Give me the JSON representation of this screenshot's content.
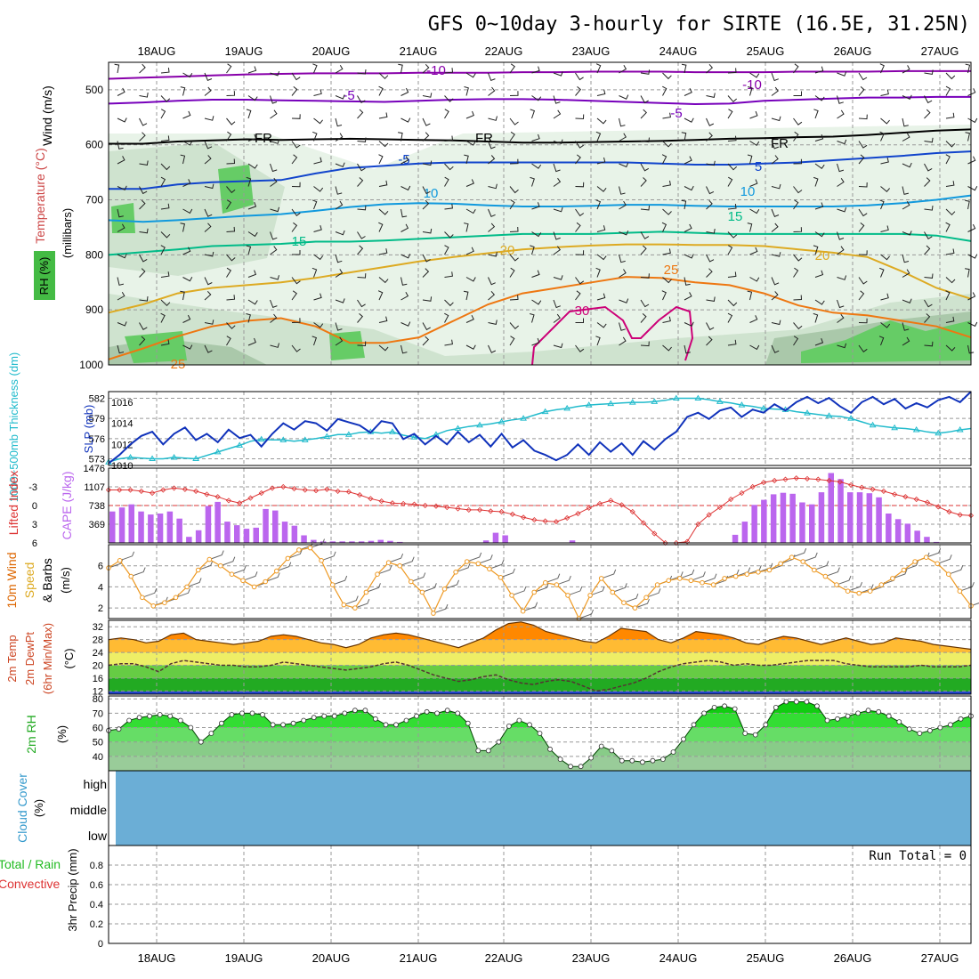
{
  "title": "GFS 0~10day 3-hourly for SIRTE (16.5E, 31.25N)",
  "dates": [
    "18AUG",
    "19AUG",
    "20AUG",
    "21AUG",
    "22AUG",
    "23AUG",
    "24AUG",
    "25AUG",
    "26AUG",
    "27AUG"
  ],
  "colors": {
    "rh_fill": [
      "#e8f3e8",
      "#cfe3cf",
      "#aac8aa",
      "#66cc66"
    ],
    "temp_m10": "#8800aa",
    "temp_m5": "#7700bb",
    "temp_fr": "#000000",
    "temp_5": "#1144cc",
    "temp_10": "#1199dd",
    "temp_15": "#00bb88",
    "temp_20": "#ddaa22",
    "temp_25": "#ee7711",
    "temp_30": "#cc0077",
    "slp": "#1133bb",
    "thickness": "#22bbcc",
    "lifted": "#dd3333",
    "cape": "#bb66ee",
    "wind10": "#ee9922",
    "t2m": "#ee6600",
    "cloud": "#6baed6"
  },
  "panel_labels": {
    "upper_wind": "Wind (m/s)",
    "upper_temp": "Temperature (°C)",
    "upper_rh": "RH (%)",
    "upper_axis": "(millibars)",
    "slp": "SLP (mb)",
    "thickness": "1000~500mb Thickness (dm)",
    "lifted": "Lifted Index",
    "cape": "CAPE (J/kg)",
    "wind10": "10m Wind",
    "wind10_b": "Speed",
    "wind10_c": "& Barbs",
    "wind10_unit": "(m/s)",
    "t2m_a": "2m Temp",
    "t2m_b": "2m DewPt",
    "t2m_c": "(6hr Min/Max)",
    "t2m_unit": "(°C)",
    "rh2m": "2m RH",
    "rh2m_unit": "(%)",
    "cloud": "Cloud Cover",
    "cloud_unit": "(%)",
    "precip_a": "Total / Rain",
    "precip_b": "Convective",
    "precip_c": "3hr Precip (mm)"
  },
  "cloud_levels": [
    "high",
    "middle",
    "low"
  ],
  "run_total": "Run Total = 0",
  "contour_labels": [
    "-10",
    "-10",
    "-5",
    "-5",
    "FR",
    "FR",
    "FR",
    "-5",
    "5",
    "10",
    "10",
    "15",
    "15",
    "20",
    "20",
    "25",
    "25",
    "30"
  ],
  "chart_data": [
    {
      "type": "heatmap",
      "name": "upper",
      "ylabel": "millibars",
      "y_ticks": [
        500,
        600,
        700,
        800,
        900,
        1000
      ],
      "ylim": [
        450,
        1000
      ],
      "contours": {
        "m10": [
          480,
          478,
          476,
          474,
          472,
          471,
          470,
          470,
          470,
          469,
          469,
          469,
          468,
          468,
          467,
          467,
          467,
          468,
          468,
          468,
          467,
          467,
          467,
          466,
          466,
          466
        ],
        "m5": [
          525,
          523,
          520,
          518,
          518,
          519,
          520,
          521,
          522,
          520,
          518,
          517,
          517,
          518,
          520,
          522,
          524,
          526,
          525,
          520,
          518,
          516,
          514,
          514,
          513,
          513
        ],
        "fr": [
          598,
          598,
          594,
          592,
          590,
          591,
          590,
          589,
          590,
          591,
          592,
          594,
          596,
          596,
          595,
          594,
          593,
          591,
          589,
          588,
          586,
          585,
          582,
          578,
          574,
          572
        ],
        "p5": [
          680,
          680,
          672,
          668,
          666,
          664,
          652,
          642,
          638,
          634,
          632,
          632,
          632,
          632,
          632,
          632,
          634,
          636,
          636,
          634,
          632,
          628,
          624,
          620,
          615,
          612
        ],
        "p10": [
          737,
          740,
          737,
          733,
          729,
          726,
          720,
          713,
          708,
          706,
          707,
          710,
          712,
          712,
          711,
          709,
          709,
          711,
          712,
          712,
          712,
          712,
          710,
          706,
          700,
          692
        ],
        "p15": [
          800,
          795,
          790,
          784,
          782,
          780,
          776,
          776,
          774,
          771,
          768,
          765,
          762,
          762,
          762,
          760,
          758,
          760,
          762,
          762,
          762,
          762,
          762,
          762,
          765,
          775
        ],
        "p20": [
          905,
          890,
          870,
          860,
          855,
          850,
          842,
          832,
          822,
          812,
          804,
          797,
          790,
          786,
          783,
          781,
          781,
          782,
          782,
          784,
          790,
          796,
          804,
          830,
          860,
          880
        ],
        "p25": [
          990,
          970,
          948,
          930,
          920,
          915,
          930,
          960,
          960,
          950,
          920,
          890,
          870,
          860,
          850,
          840,
          842,
          850,
          855,
          870,
          892,
          905,
          910,
          920,
          930,
          950
        ]
      },
      "pressure_ticks_label": "millibars"
    },
    {
      "type": "line",
      "name": "slp_thickness",
      "y_ticks_thickness": [
        573,
        576,
        579,
        582
      ],
      "y_ticks_slp": [
        1010,
        1012,
        1014,
        1016
      ],
      "series": [
        {
          "name": "SLP (mb)",
          "values": [
            1010.2,
            1011.0,
            1012.0,
            1012.8,
            1013.2,
            1012.0,
            1013.0,
            1013.6,
            1012.4,
            1013.0,
            1012.2,
            1013.4,
            1012.6,
            1012.9,
            1011.8,
            1013.0,
            1014.0,
            1013.4,
            1014.2,
            1014.0,
            1013.3,
            1014.4,
            1014.1,
            1013.8,
            1013.1,
            1014.2,
            1014.0,
            1012.5,
            1013.0,
            1012.0,
            1012.8,
            1012.0,
            1013.2,
            1012.2,
            1012.9,
            1011.8,
            1013.0,
            1011.7,
            1012.4,
            1011.4,
            1011.0,
            1010.5,
            1011.0,
            1012.0,
            1011.0,
            1012.2,
            1011.3,
            1012.1,
            1011.0,
            1012.3,
            1011.5,
            1012.5,
            1013.2,
            1014.6,
            1015.0,
            1014.4,
            1015.2,
            1015.5,
            1014.6,
            1015.3,
            1015.0,
            1015.8,
            1015.2,
            1016.0,
            1016.5,
            1015.9,
            1016.4,
            1015.6,
            1015.0,
            1016.0,
            1016.5,
            1015.8,
            1016.3,
            1015.4,
            1015.9,
            1015.5,
            1016.2,
            1016.5,
            1016.0,
            1017.0
          ]
        },
        {
          "name": "1000~500mb Thickness (dm)",
          "values": [
            572.5,
            573.0,
            573.2,
            573.1,
            573.0,
            573.0,
            573.2,
            573.1,
            573.0,
            573.5,
            574.0,
            574.5,
            575.0,
            575.6,
            575.9,
            575.8,
            575.8,
            575.6,
            575.8,
            576.0,
            576.3,
            576.6,
            576.6,
            576.9,
            577.0,
            576.8,
            577.0,
            576.5,
            576.2,
            576.0,
            576.6,
            577.2,
            577.5,
            577.8,
            578.0,
            578.2,
            578.5,
            578.8,
            579.0,
            579.5,
            580.0,
            580.3,
            580.5,
            580.8,
            581.0,
            581.1,
            581.2,
            581.3,
            581.4,
            581.4,
            581.5,
            581.7,
            582.0,
            582.0,
            582.0,
            581.8,
            581.5,
            581.3,
            581.0,
            580.8,
            580.5,
            580.4,
            580.3,
            580.0,
            579.8,
            579.6,
            579.4,
            579.3,
            579.0,
            578.5,
            578.0,
            577.8,
            577.6,
            577.5,
            577.3,
            577.0,
            576.8,
            577.0,
            577.3,
            577.5
          ]
        }
      ],
      "ylim_thickness": [
        572,
        583
      ],
      "ylim_slp": [
        1010,
        1017
      ]
    },
    {
      "type": "bar",
      "name": "lifted_cape",
      "y_ticks_lifted": [
        -3,
        0,
        3,
        6
      ],
      "y_ticks_cape": [
        369,
        738,
        1107,
        1476
      ],
      "series": [
        {
          "name": "Lifted Index",
          "values": [
            -2.5,
            -2.5,
            -2.5,
            -2.3,
            -2.0,
            -2.5,
            -2.8,
            -2.6,
            -2.3,
            -1.8,
            -1.4,
            -0.8,
            -0.4,
            -1.2,
            -2.0,
            -2.8,
            -3.0,
            -2.7,
            -2.5,
            -2.4,
            -2.6,
            -2.3,
            -2.2,
            -1.7,
            -1.1,
            -0.7,
            -0.4,
            -0.3,
            -0.2,
            0.0,
            0.1,
            0.3,
            0.5,
            0.7,
            0.7,
            0.9,
            1.0,
            1.4,
            1.9,
            2.3,
            2.5,
            2.6,
            2.0,
            1.3,
            0.4,
            -0.3,
            -0.8,
            -0.1,
            1.0,
            2.8,
            4.5,
            6.0,
            7.8,
            5.8,
            3.0,
            1.5,
            0.3,
            -1.0,
            -2.0,
            -3.0,
            -3.7,
            -4.0,
            -4.2,
            -4.4,
            -4.3,
            -4.2,
            -4.0,
            -3.8,
            -3.3,
            -2.9,
            -2.6,
            -2.3,
            -1.8,
            -1.4,
            -1.0,
            -0.5,
            0.2,
            1.0,
            1.5,
            1.6
          ]
        },
        {
          "name": "CAPE (J/kg)",
          "values": [
            620,
            700,
            760,
            620,
            560,
            580,
            620,
            480,
            120,
            250,
            730,
            810,
            420,
            350,
            280,
            300,
            670,
            640,
            420,
            340,
            150,
            60,
            30,
            30,
            30,
            30,
            30,
            40,
            60,
            40,
            20,
            0,
            0,
            0,
            0,
            0,
            0,
            0,
            0,
            50,
            200,
            150,
            0,
            0,
            0,
            0,
            0,
            0,
            50,
            0,
            0,
            0,
            0,
            0,
            0,
            0,
            0,
            0,
            0,
            0,
            0,
            0,
            0,
            0,
            0,
            160,
            420,
            750,
            850,
            960,
            990,
            970,
            800,
            760,
            1000,
            1380,
            1260,
            1000,
            1000,
            980,
            900,
            580,
            470,
            380,
            240,
            120,
            20,
            0,
            0,
            0
          ]
        }
      ],
      "ylim_lifted": [
        6,
        -6
      ],
      "ylim_cape": [
        0,
        1476
      ]
    },
    {
      "type": "line",
      "name": "wind10",
      "y_ticks": [
        2,
        4,
        6
      ],
      "series": [
        {
          "name": "10m Wind Speed",
          "values": [
            5.8,
            6.5,
            5.0,
            3.0,
            2.2,
            2.5,
            3.0,
            4.0,
            5.6,
            6.6,
            6.0,
            5.2,
            4.6,
            4.0,
            4.5,
            5.5,
            6.7,
            7.5,
            7.7,
            6.5,
            4.2,
            2.3,
            2.0,
            3.5,
            5.2,
            6.3,
            6.0,
            4.5,
            3.5,
            1.5,
            3.8,
            5.4,
            6.4,
            6.2,
            5.7,
            4.9,
            3.2,
            1.7,
            3.5,
            4.4,
            4.2,
            3.2,
            1.0,
            3.2,
            4.8,
            3.5,
            2.5,
            2.0,
            3.0,
            4.2,
            4.6,
            4.8,
            4.6,
            4.4,
            4.2,
            4.8,
            5.0,
            5.2,
            5.4,
            5.6,
            6.2,
            6.8,
            6.4,
            5.6,
            5.0,
            4.2,
            3.6,
            3.4,
            3.6,
            4.2,
            4.8,
            5.6,
            6.4,
            6.8,
            6.2,
            5.2,
            3.6,
            2.2
          ]
        }
      ],
      "ylim": [
        1,
        8
      ]
    },
    {
      "type": "area",
      "name": "temp_dew",
      "y_ticks": [
        12,
        16,
        20,
        24,
        28,
        32
      ],
      "series": [
        {
          "name": "2m Temp",
          "values": [
            28.0,
            28.5,
            28.0,
            27.0,
            27.5,
            29.5,
            30.0,
            28.0,
            27.5,
            27.0,
            26.5,
            27.0,
            27.5,
            29.0,
            29.5,
            29.0,
            28.0,
            27.0,
            26.5,
            25.5,
            26.5,
            28.5,
            29.5,
            30.0,
            29.5,
            28.5,
            27.5,
            26.5,
            25.5,
            27.0,
            28.5,
            31.0,
            33.0,
            33.5,
            32.5,
            30.5,
            29.5,
            28.5,
            27.5,
            27.0,
            29.0,
            31.5,
            31.0,
            30.5,
            28.0,
            27.0,
            28.5,
            30.5,
            30.0,
            29.5,
            28.5,
            27.0,
            26.5,
            28.0,
            29.0,
            28.5,
            27.5,
            26.5,
            27.5,
            28.5,
            27.5,
            26.5,
            27.0,
            28.5,
            28.0,
            27.5,
            26.5,
            26.0,
            25.5,
            25.0
          ]
        },
        {
          "name": "2m DewPt",
          "values": [
            20.0,
            20.5,
            20.5,
            19.5,
            18.0,
            20.5,
            21.5,
            21.0,
            20.5,
            20.0,
            20.0,
            19.5,
            19.5,
            20.0,
            21.0,
            20.5,
            20.0,
            19.5,
            19.0,
            18.5,
            19.0,
            19.5,
            20.5,
            21.0,
            20.0,
            18.5,
            17.0,
            16.0,
            15.0,
            15.5,
            16.5,
            17.0,
            15.5,
            14.5,
            14.0,
            15.0,
            15.5,
            15.0,
            13.5,
            12.0,
            12.5,
            13.5,
            14.5,
            16.0,
            18.0,
            19.5,
            20.5,
            21.0,
            21.5,
            21.0,
            20.0,
            20.5,
            20.0,
            20.0,
            20.5,
            21.0,
            21.5,
            21.5,
            21.5,
            20.5,
            20.0,
            19.5,
            19.5,
            19.5,
            19.5,
            20.0,
            19.5,
            19.5,
            19.5,
            20.0
          ]
        }
      ],
      "ylim": [
        11,
        34
      ]
    },
    {
      "type": "area",
      "name": "rh2m",
      "y_ticks": [
        40,
        50,
        60,
        70,
        80
      ],
      "series": [
        {
          "name": "2m RH",
          "values": [
            58,
            59,
            65,
            67,
            68,
            69,
            68,
            65,
            60,
            50,
            56,
            63,
            69,
            70,
            70,
            69,
            62,
            62,
            63,
            65,
            67,
            68,
            68,
            70,
            72,
            72,
            66,
            62,
            62,
            65,
            68,
            71,
            70,
            72,
            70,
            63,
            44,
            44,
            50,
            61,
            65,
            62,
            56,
            45,
            38,
            33,
            33,
            39,
            47,
            44,
            37,
            37,
            36,
            37,
            38,
            43,
            52,
            62,
            70,
            74,
            75,
            73,
            56,
            55,
            62,
            74,
            78,
            78,
            78,
            75,
            65,
            66,
            68,
            70,
            72,
            71,
            68,
            64,
            59,
            56,
            58,
            60,
            62,
            66,
            68
          ]
        }
      ],
      "ylim": [
        30,
        82
      ]
    },
    {
      "type": "area",
      "name": "cloud",
      "series": [
        {
          "name": "high",
          "values": [
            100
          ]
        },
        {
          "name": "middle",
          "values": [
            100
          ]
        },
        {
          "name": "low",
          "values": [
            100
          ]
        }
      ]
    },
    {
      "type": "bar",
      "name": "precip",
      "y_ticks": [
        0,
        0.2,
        0.4,
        0.6,
        0.8
      ],
      "ylim": [
        0,
        1
      ],
      "series": [
        {
          "name": "3hr Precip (mm)",
          "values": [
            0
          ]
        }
      ]
    }
  ]
}
